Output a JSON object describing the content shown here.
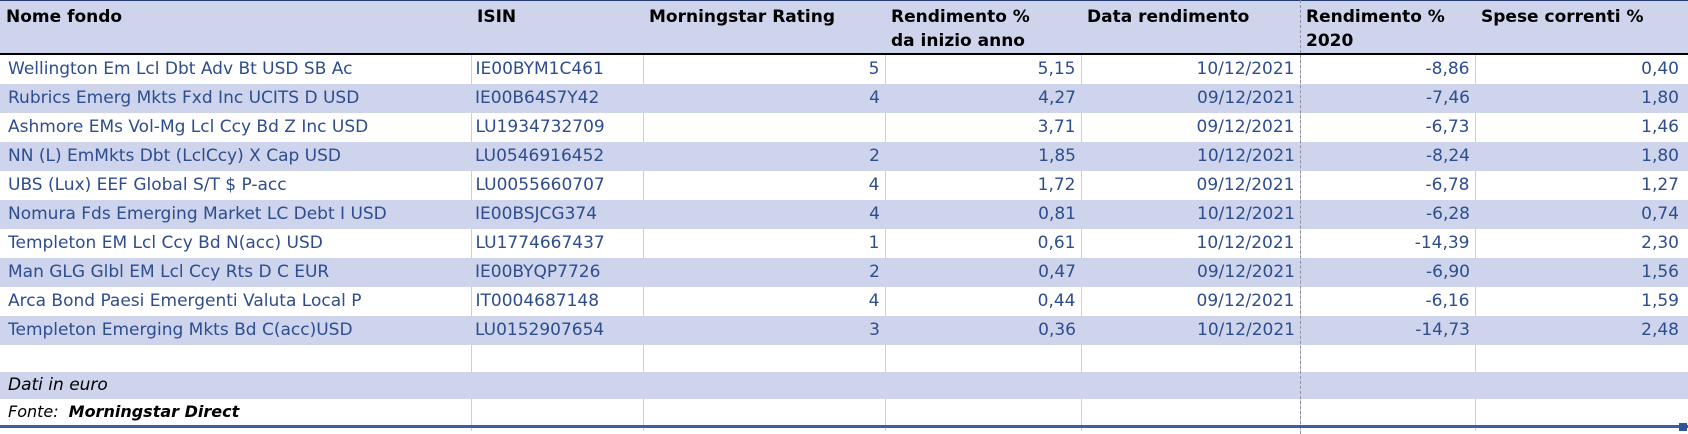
{
  "header": {
    "columns": [
      {
        "id": "name",
        "label": "Nome fondo",
        "label2": ""
      },
      {
        "id": "isin",
        "label": "ISIN",
        "label2": ""
      },
      {
        "id": "rating",
        "label": "Morningstar Rating",
        "label2": ""
      },
      {
        "id": "ytd",
        "label": "Rendimento %",
        "label2": "da inizio anno"
      },
      {
        "id": "date",
        "label": "Data rendimento",
        "label2": ""
      },
      {
        "id": "r2020",
        "label": "Rendimento %",
        "label2": "2020"
      },
      {
        "id": "fees",
        "label": "Spese correnti %",
        "label2": ""
      }
    ]
  },
  "rows": [
    {
      "name": "Wellington Em Lcl Dbt Adv Bt USD SB Ac",
      "isin": "IE00BYM1C461",
      "rating": "5",
      "ytd": "5,15",
      "date": "10/12/2021",
      "r2020": "-8,86",
      "fees": "0,40"
    },
    {
      "name": "Rubrics Emerg Mkts Fxd Inc UCITS D USD",
      "isin": "IE00B64S7Y42",
      "rating": "4",
      "ytd": "4,27",
      "date": "09/12/2021",
      "r2020": "-7,46",
      "fees": "1,80"
    },
    {
      "name": "Ashmore EMs Vol-Mg Lcl Ccy Bd Z Inc USD",
      "isin": "LU1934732709",
      "rating": "",
      "ytd": "3,71",
      "date": "09/12/2021",
      "r2020": "-6,73",
      "fees": "1,46"
    },
    {
      "name": "NN (L) EmMkts Dbt (LclCcy) X Cap USD",
      "isin": "LU0546916452",
      "rating": "2",
      "ytd": "1,85",
      "date": "10/12/2021",
      "r2020": "-8,24",
      "fees": "1,80"
    },
    {
      "name": "UBS (Lux) EEF Global S/T $ P-acc",
      "isin": "LU0055660707",
      "rating": "4",
      "ytd": "1,72",
      "date": "09/12/2021",
      "r2020": "-6,78",
      "fees": "1,27"
    },
    {
      "name": "Nomura Fds Emerging Market LC Debt I USD",
      "isin": "IE00BSJCG374",
      "rating": "4",
      "ytd": "0,81",
      "date": "10/12/2021",
      "r2020": "-6,28",
      "fees": "0,74"
    },
    {
      "name": "Templeton EM Lcl Ccy Bd N(acc) USD",
      "isin": "LU1774667437",
      "rating": "1",
      "ytd": "0,61",
      "date": "10/12/2021",
      "r2020": "-14,39",
      "fees": "2,30"
    },
    {
      "name": "Man GLG Glbl EM Lcl Ccy Rts D C EUR",
      "isin": "IE00BYQP7726",
      "rating": "2",
      "ytd": "0,47",
      "date": "09/12/2021",
      "r2020": "-6,90",
      "fees": "1,56"
    },
    {
      "name": "Arca Bond Paesi Emergenti Valuta Local P",
      "isin": "IT0004687148",
      "rating": "4",
      "ytd": "0,44",
      "date": "09/12/2021",
      "r2020": "-6,16",
      "fees": "1,59"
    },
    {
      "name": "Templeton Emerging Mkts Bd C(acc)USD",
      "isin": "LU0152907654",
      "rating": "3",
      "ytd": "0,36",
      "date": "10/12/2021",
      "r2020": "-14,73",
      "fees": "2,48"
    }
  ],
  "footer": {
    "note": "Dati in euro",
    "source_label": "Fonte:",
    "source_value": "Morningstar Direct"
  },
  "colors": {
    "row_band": "#cdd4ec",
    "data_text": "#2e4d8e",
    "selection": "#3a5fa8",
    "gridline": "#c9cfdd"
  }
}
